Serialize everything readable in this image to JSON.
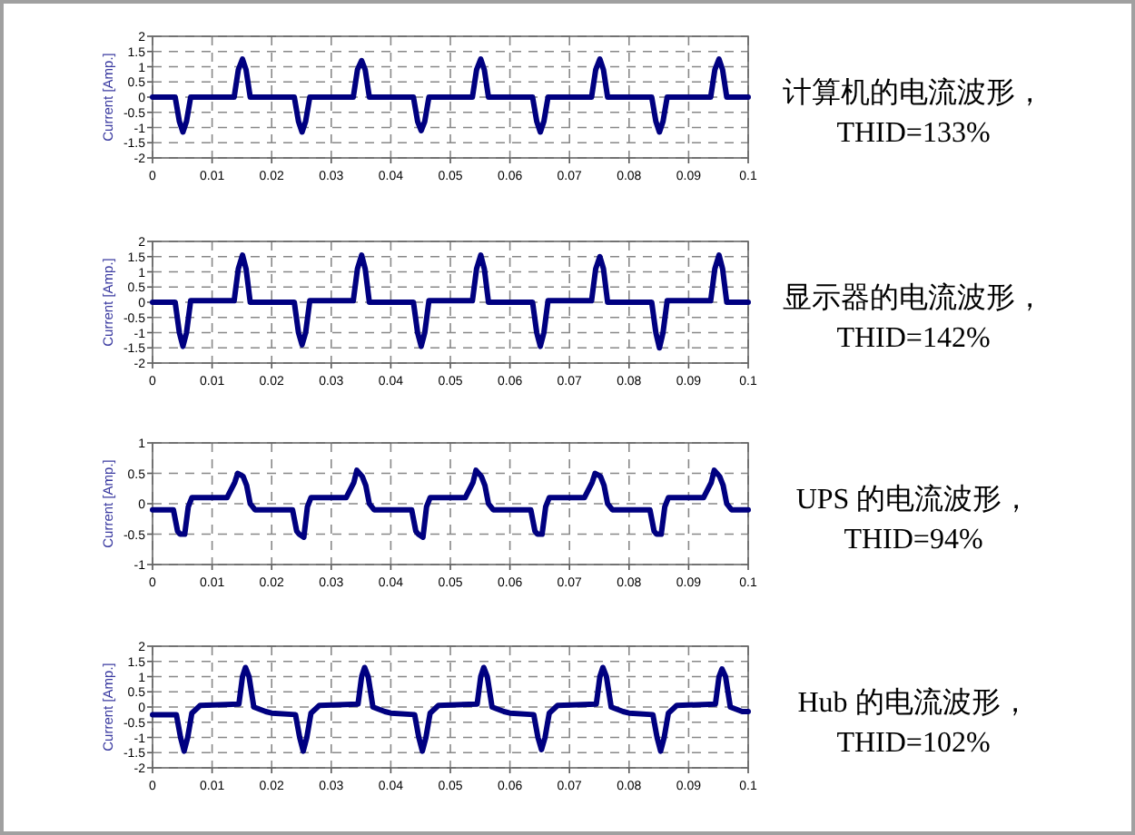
{
  "chart_data": [
    {
      "type": "line",
      "annotations": [
        "计算机的电流波形，",
        "THID=133%"
      ],
      "ylabel": "Current [Amp.]",
      "xlim": [
        0,
        0.1
      ],
      "ylim": [
        -2,
        2
      ],
      "grid": true,
      "xticks": [
        0,
        0.01,
        0.02,
        0.03,
        0.04,
        0.05,
        0.06,
        0.07,
        0.08,
        0.09,
        0.1
      ],
      "yticks": [
        -2,
        -1.5,
        -1,
        -0.5,
        0,
        0.5,
        1,
        1.5,
        2
      ],
      "series": [
        {
          "color": "#000080",
          "x": [
            0,
            0.0038,
            0.0045,
            0.0051,
            0.0057,
            0.0064,
            0.0137,
            0.0144,
            0.0151,
            0.0157,
            0.0164,
            0.02,
            0.0238,
            0.0245,
            0.0251,
            0.0257,
            0.0264,
            0.0337,
            0.0344,
            0.0351,
            0.0357,
            0.0364,
            0.04,
            0.0438,
            0.0445,
            0.0451,
            0.0457,
            0.0464,
            0.0537,
            0.0544,
            0.0551,
            0.0557,
            0.0564,
            0.06,
            0.0638,
            0.0645,
            0.0651,
            0.0657,
            0.0664,
            0.0737,
            0.0744,
            0.0751,
            0.0757,
            0.0764,
            0.08,
            0.0838,
            0.0845,
            0.0851,
            0.0857,
            0.0864,
            0.0937,
            0.0944,
            0.0951,
            0.0957,
            0.0964,
            0.1
          ],
          "values": [
            0,
            0,
            -0.8,
            -1.15,
            -0.8,
            0,
            0,
            0.9,
            1.25,
            0.9,
            0,
            0,
            0,
            -0.8,
            -1.15,
            -0.8,
            0,
            0,
            0.9,
            1.2,
            0.9,
            0,
            0,
            0,
            -0.8,
            -1.1,
            -0.8,
            0,
            0,
            0.9,
            1.25,
            0.9,
            0,
            0,
            0,
            -0.8,
            -1.15,
            -0.8,
            0,
            0,
            0.9,
            1.25,
            0.9,
            0,
            0,
            0,
            -0.8,
            -1.15,
            -0.8,
            0,
            0,
            0.9,
            1.25,
            0.9,
            0,
            0
          ]
        }
      ]
    },
    {
      "type": "line",
      "annotations": [
        "显示器的电流波形，",
        "THID=142%"
      ],
      "ylabel": "Current [Amp.]",
      "xlim": [
        0,
        0.1
      ],
      "ylim": [
        -2,
        2
      ],
      "grid": true,
      "xticks": [
        0,
        0.01,
        0.02,
        0.03,
        0.04,
        0.05,
        0.06,
        0.07,
        0.08,
        0.09,
        0.1
      ],
      "yticks": [
        -2,
        -1.5,
        -1,
        -0.5,
        0,
        0.5,
        1,
        1.5,
        2
      ],
      "series": [
        {
          "color": "#000080",
          "x": [
            0,
            0.0038,
            0.0045,
            0.0051,
            0.0057,
            0.0064,
            0.0137,
            0.0144,
            0.0151,
            0.0157,
            0.0164,
            0.02,
            0.0238,
            0.0245,
            0.0251,
            0.0257,
            0.0264,
            0.0337,
            0.0344,
            0.0351,
            0.0357,
            0.0364,
            0.04,
            0.0438,
            0.0445,
            0.0451,
            0.0457,
            0.0464,
            0.0537,
            0.0544,
            0.0551,
            0.0557,
            0.0564,
            0.06,
            0.0638,
            0.0645,
            0.0651,
            0.0657,
            0.0664,
            0.0737,
            0.0744,
            0.0751,
            0.0757,
            0.0764,
            0.08,
            0.0838,
            0.0845,
            0.0851,
            0.0857,
            0.0864,
            0.0937,
            0.0944,
            0.0951,
            0.0957,
            0.0964,
            0.1
          ],
          "values": [
            0,
            0,
            -1,
            -1.45,
            -1,
            0.05,
            0.05,
            1.1,
            1.55,
            1.1,
            0,
            0,
            0,
            -1,
            -1.4,
            -1,
            0.05,
            0.05,
            1.1,
            1.55,
            1.1,
            0,
            0,
            0,
            -1,
            -1.45,
            -1,
            0.05,
            0.05,
            1.1,
            1.55,
            1.1,
            0,
            0,
            0,
            -1,
            -1.45,
            -1,
            0.05,
            0.05,
            1.1,
            1.5,
            1.1,
            0,
            0,
            0,
            -1,
            -1.5,
            -1,
            0.05,
            0.05,
            1.1,
            1.55,
            1.1,
            0,
            0
          ]
        }
      ]
    },
    {
      "type": "line",
      "annotations": [
        "UPS 的电流波形，",
        "THID=94%"
      ],
      "ylabel": "Current [Amp.]",
      "xlim": [
        0,
        0.1
      ],
      "ylim": [
        -1,
        1
      ],
      "grid": true,
      "xticks": [
        0,
        0.01,
        0.02,
        0.03,
        0.04,
        0.05,
        0.06,
        0.07,
        0.08,
        0.09,
        0.1
      ],
      "yticks": [
        -1,
        -0.5,
        0,
        0.5,
        1
      ],
      "series": [
        {
          "color": "#000080",
          "x": [
            0,
            0.0035,
            0.0042,
            0.0046,
            0.0054,
            0.006,
            0.0066,
            0.0125,
            0.0138,
            0.0143,
            0.0152,
            0.0158,
            0.0164,
            0.0172,
            0.02,
            0.0235,
            0.0242,
            0.0246,
            0.0254,
            0.026,
            0.0266,
            0.0325,
            0.0338,
            0.0343,
            0.0352,
            0.0358,
            0.0364,
            0.0372,
            0.04,
            0.0435,
            0.0442,
            0.0446,
            0.0454,
            0.046,
            0.0466,
            0.0525,
            0.0538,
            0.0543,
            0.0552,
            0.0558,
            0.0564,
            0.0572,
            0.06,
            0.0635,
            0.0642,
            0.0646,
            0.0654,
            0.066,
            0.0666,
            0.0725,
            0.0738,
            0.0743,
            0.0752,
            0.0758,
            0.0764,
            0.0772,
            0.08,
            0.0835,
            0.0842,
            0.0846,
            0.0854,
            0.086,
            0.0866,
            0.0925,
            0.0938,
            0.0943,
            0.0952,
            0.0958,
            0.0964,
            0.0972,
            0.1
          ],
          "values": [
            -0.1,
            -0.1,
            -0.45,
            -0.5,
            -0.5,
            -0.05,
            0.1,
            0.1,
            0.35,
            0.5,
            0.45,
            0.3,
            0,
            -0.1,
            -0.1,
            -0.1,
            -0.45,
            -0.5,
            -0.55,
            -0.05,
            0.1,
            0.1,
            0.35,
            0.55,
            0.45,
            0.3,
            0,
            -0.1,
            -0.1,
            -0.1,
            -0.45,
            -0.5,
            -0.55,
            -0.05,
            0.1,
            0.1,
            0.35,
            0.55,
            0.45,
            0.3,
            0,
            -0.1,
            -0.1,
            -0.1,
            -0.45,
            -0.5,
            -0.5,
            -0.05,
            0.1,
            0.1,
            0.35,
            0.5,
            0.45,
            0.3,
            0,
            -0.1,
            -0.1,
            -0.1,
            -0.45,
            -0.5,
            -0.5,
            -0.05,
            0.1,
            0.1,
            0.35,
            0.55,
            0.45,
            0.3,
            0,
            -0.1,
            -0.1
          ]
        }
      ]
    },
    {
      "type": "line",
      "annotations": [
        "Hub 的电流波形，",
        "THID=102%"
      ],
      "ylabel": "Current [Amp.]",
      "xlim": [
        0,
        0.1
      ],
      "ylim": [
        -2,
        2
      ],
      "grid": true,
      "xticks": [
        0,
        0.01,
        0.02,
        0.03,
        0.04,
        0.05,
        0.06,
        0.07,
        0.08,
        0.09,
        0.1
      ],
      "yticks": [
        -2,
        -1.5,
        -1,
        -0.5,
        0,
        0.5,
        1,
        1.5,
        2
      ],
      "series": [
        {
          "color": "#000080",
          "x": [
            0,
            0.004,
            0.0047,
            0.0053,
            0.0059,
            0.0066,
            0.008,
            0.0145,
            0.0151,
            0.0156,
            0.0162,
            0.017,
            0.019,
            0.02,
            0.024,
            0.0247,
            0.0253,
            0.0259,
            0.0266,
            0.028,
            0.0345,
            0.0351,
            0.0356,
            0.0362,
            0.037,
            0.039,
            0.04,
            0.044,
            0.0447,
            0.0453,
            0.0459,
            0.0466,
            0.048,
            0.0545,
            0.0551,
            0.0556,
            0.0562,
            0.057,
            0.059,
            0.06,
            0.064,
            0.0647,
            0.0653,
            0.0659,
            0.0666,
            0.068,
            0.0745,
            0.0751,
            0.0756,
            0.0762,
            0.077,
            0.079,
            0.08,
            0.084,
            0.0847,
            0.0853,
            0.0859,
            0.0866,
            0.088,
            0.0945,
            0.0951,
            0.0956,
            0.0962,
            0.097,
            0.099,
            0.1
          ],
          "values": [
            -0.25,
            -0.25,
            -1,
            -1.45,
            -1,
            -0.2,
            0.05,
            0.1,
            1,
            1.3,
            1,
            0,
            -0.15,
            -0.2,
            -0.25,
            -1,
            -1.45,
            -1,
            -0.2,
            0.05,
            0.1,
            1,
            1.3,
            1,
            0,
            -0.15,
            -0.2,
            -0.25,
            -1,
            -1.45,
            -1,
            -0.2,
            0.05,
            0.1,
            1,
            1.3,
            1,
            0,
            -0.15,
            -0.2,
            -0.25,
            -1,
            -1.4,
            -1,
            -0.2,
            0.05,
            0.1,
            1,
            1.3,
            1,
            0,
            -0.15,
            -0.2,
            -0.25,
            -1,
            -1.45,
            -1,
            -0.2,
            0.05,
            0.1,
            1,
            1.25,
            1,
            0,
            -0.15,
            -0.15
          ]
        }
      ]
    }
  ]
}
